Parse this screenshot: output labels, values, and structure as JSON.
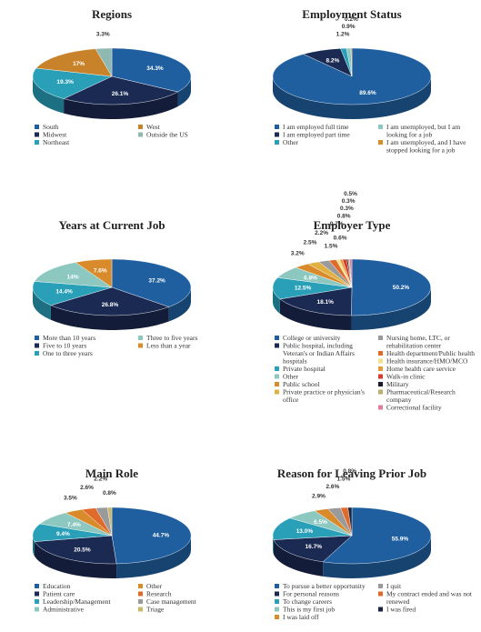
{
  "chart_data": [
    {
      "type": "pie",
      "title": "Regions",
      "categories": [
        "South",
        "Midwest",
        "Northeast",
        "West",
        "Outside the US"
      ],
      "values": [
        34.3,
        26.1,
        19.3,
        17,
        3.3
      ],
      "value_labels": [
        "34.3%",
        "26.1%",
        "19.3%",
        "17%",
        "3.3%"
      ],
      "colors": [
        "#1f5f9f",
        "#1b2a52",
        "#2aa0b8",
        "#c8832a",
        "#8fb8b0"
      ]
    },
    {
      "type": "pie",
      "title": "Employment Status",
      "categories": [
        "I am employed full time",
        "I am employed part time",
        "Other",
        "I am unemployed, but I am looking for a job",
        "I am unemployed, and I have stopped looking for a job"
      ],
      "values": [
        89.6,
        8.2,
        1.2,
        0.9,
        0.2
      ],
      "value_labels": [
        "89.6%",
        "8.2%",
        "1.2%",
        "0.9%",
        "0.2%"
      ],
      "colors": [
        "#1f5f9f",
        "#1b2a52",
        "#2aa0b8",
        "#8cc8c0",
        "#d98b2b"
      ]
    },
    {
      "type": "pie",
      "title": "Years at Current Job",
      "categories": [
        "More than 10 years",
        "Five to 10 years",
        "One to three years",
        "Three to five years",
        "Less than a year"
      ],
      "values": [
        37.2,
        26.8,
        14.4,
        14,
        7.6
      ],
      "value_labels": [
        "37.2%",
        "26.8%",
        "14.4%",
        "14%",
        "7.6%"
      ],
      "colors": [
        "#1f5f9f",
        "#1b2a52",
        "#2aa0b8",
        "#8cc8c0",
        "#d98b2b"
      ]
    },
    {
      "type": "pie",
      "title": "Employer Type",
      "categories": [
        "College or university",
        "Public hospital, including Veteran's or Indian Affairs hospitals",
        "Private hospital",
        "Other",
        "Public school",
        "Private practice or physician's office",
        "Nursing home, LTC, or rehabilitation center",
        "Health department/Public health",
        "Health insurance/HMO/MCO",
        "Home health care service",
        "Walk-in clinic",
        "Military",
        "Pharmaceutical/Research company",
        "Correctional facility"
      ],
      "values": [
        50.2,
        18.1,
        12.5,
        6.8,
        3.2,
        2.5,
        2.2,
        1.5,
        0.7,
        0.6,
        0.8,
        0.3,
        0.3,
        0.5
      ],
      "value_labels": [
        "50.2%",
        "18.1%",
        "12.5%",
        "6.8%",
        "3.2%",
        "2.5%",
        "2.2%",
        "1.5%",
        "0.7%",
        "0.6%",
        "0.8%",
        "0.3%",
        "0.3%",
        "0.5%"
      ],
      "colors": [
        "#1f5f9f",
        "#1b2a52",
        "#2aa0b8",
        "#8cc8c0",
        "#d98b2b",
        "#e0b040",
        "#9a9a9a",
        "#e06a2a",
        "#f2e08a",
        "#e89a3a",
        "#d93a2a",
        "#1a1a2a",
        "#b8b070",
        "#e07aa0"
      ]
    },
    {
      "type": "pie",
      "title": "Main Role",
      "categories": [
        "Education",
        "Patient care",
        "Leadership/Management",
        "Administrative",
        "Other",
        "Research",
        "Case management",
        "Triage"
      ],
      "values": [
        44.7,
        20.5,
        9.4,
        7.4,
        3.5,
        2.6,
        2.2,
        0.8
      ],
      "value_labels": [
        "44.7%",
        "20.5%",
        "9.4%",
        "7.4%",
        "3.5%",
        "2.6%",
        "2.2%",
        "0.8%"
      ],
      "colors": [
        "#1f5f9f",
        "#1b2a52",
        "#2aa0b8",
        "#8cc8c0",
        "#d98b2b",
        "#e06a2a",
        "#9a9a9a",
        "#c9b86a"
      ]
    },
    {
      "type": "pie",
      "title": "Reason for Leaving Prior Job",
      "categories": [
        "To pursue a better opportunity",
        "For personal reasons",
        "To change careers",
        "This is my first job",
        "I was laid off",
        "I quit",
        "My contract ended and was not renewed",
        "I was fired"
      ],
      "values": [
        55.9,
        16.7,
        13,
        6.5,
        2.9,
        2.6,
        1.5,
        0.8
      ],
      "value_labels": [
        "55.9%",
        "16.7%",
        "13.0%",
        "6.5%",
        "2.9%",
        "2.6%",
        "1.5%",
        "0.8%"
      ],
      "colors": [
        "#1f5f9f",
        "#1b2a52",
        "#2aa0b8",
        "#8cc8c0",
        "#d98b2b",
        "#9a9a9a",
        "#e06a2a",
        "#1a2440"
      ]
    }
  ]
}
